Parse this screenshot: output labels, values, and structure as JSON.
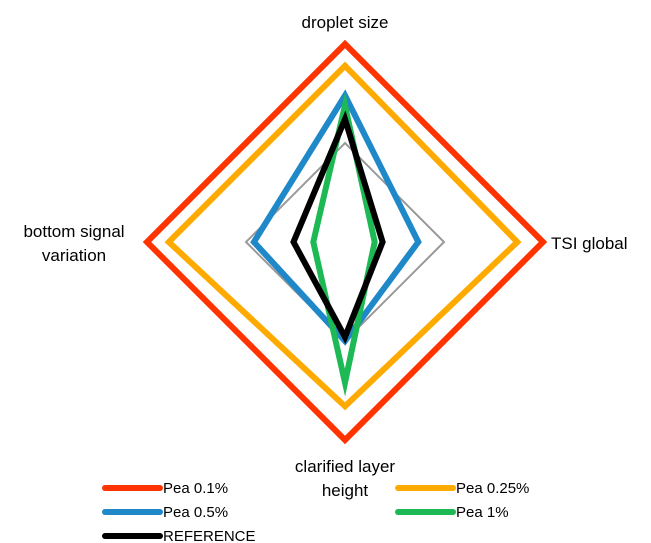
{
  "chart_data": {
    "type": "radar",
    "title": "",
    "axes": [
      "droplet size",
      "TSI global",
      "clarified layer height",
      "bottom signal variation"
    ],
    "axis_labels": {
      "top": "droplet size",
      "right": "TSI global",
      "bottom_line1": "clarified layer",
      "bottom_line2": "height",
      "left_line1": "bottom signal",
      "left_line2": "variation"
    },
    "rlim": [
      0,
      1
    ],
    "grid_ring": 0.5,
    "grid_color": "#999999",
    "legend_position": "bottom",
    "series": [
      {
        "name": "Pea 0.1%",
        "color": "#FF3300",
        "values": [
          1.0,
          1.0,
          1.0,
          1.0
        ]
      },
      {
        "name": "Pea 0.25%",
        "color": "#FFAA00",
        "values": [
          0.89,
          0.87,
          0.83,
          0.89
        ]
      },
      {
        "name": "Pea 0.5%",
        "color": "#1E88C8",
        "values": [
          0.74,
          0.37,
          0.5,
          0.46
        ]
      },
      {
        "name": "Pea 1%",
        "color": "#1DB954",
        "values": [
          0.69,
          0.15,
          0.71,
          0.16
        ]
      },
      {
        "name": "REFERENCE",
        "color": "#000000",
        "values": [
          0.62,
          0.19,
          0.48,
          0.26
        ]
      }
    ]
  }
}
